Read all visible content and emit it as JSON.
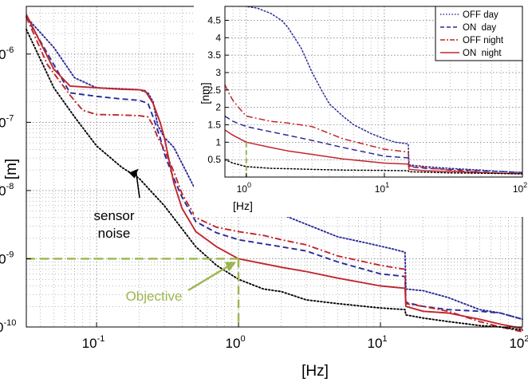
{
  "chart_data": [
    {
      "type": "line",
      "xscale": "log",
      "yscale": "log",
      "xlim": [
        0.032,
        100
      ],
      "ylim": [
        1e-10,
        5e-06
      ],
      "xlabel": "[Hz]",
      "ylabel": "[m]",
      "x_ticks": [
        {
          "value": 0.1,
          "base": "10",
          "exp": "-1"
        },
        {
          "value": 1,
          "base": "10",
          "exp": "0"
        },
        {
          "value": 10,
          "base": "10",
          "exp": "1"
        },
        {
          "value": 100,
          "base": "10",
          "exp": "2"
        }
      ],
      "y_ticks": [
        {
          "value": 1e-10,
          "base": "10",
          "exp": "-10"
        },
        {
          "value": 1e-09,
          "base": "10",
          "exp": "-9"
        },
        {
          "value": 1e-08,
          "base": "10",
          "exp": "-8"
        },
        {
          "value": 1e-07,
          "base": "10",
          "exp": "-7"
        },
        {
          "value": 1e-06,
          "base": "10",
          "exp": "-6"
        }
      ],
      "grid": true,
      "series": [
        {
          "key": "off_day",
          "color": "#2a2a9a",
          "style": "dotted",
          "x": [
            0.032,
            0.05,
            0.07,
            0.1,
            0.15,
            0.2,
            0.23,
            0.25,
            0.27,
            0.3,
            0.35,
            0.4,
            0.5,
            0.7,
            1,
            1.5,
            2,
            3,
            5,
            8,
            12,
            14.9,
            15.1,
            20,
            30,
            50,
            70,
            100
          ],
          "y": [
            3.5e-06,
            1.25e-06,
            4.5e-07,
            3.2e-07,
            3.1e-07,
            3e-07,
            2.7e-07,
            2e-07,
            9e-08,
            6e-08,
            4.3e-08,
            2.5e-08,
            1e-08,
            5.8e-09,
            5.2e-09,
            4.8e-09,
            4.5e-09,
            3.2e-09,
            2.1e-09,
            1.7e-09,
            1.4e-09,
            1.25e-09,
            3.6e-10,
            3.4e-10,
            2.7e-10,
            1.8e-10,
            1.6e-10,
            1.3e-10
          ]
        },
        {
          "key": "on_day",
          "color": "#2a2a9a",
          "style": "dashed",
          "x": [
            0.032,
            0.05,
            0.065,
            0.1,
            0.15,
            0.2,
            0.23,
            0.25,
            0.28,
            0.3,
            0.35,
            0.4,
            0.5,
            0.7,
            1,
            2,
            3,
            5,
            10,
            14.9,
            15.1,
            20,
            30,
            50,
            70,
            100
          ],
          "y": [
            3.5e-06,
            7e-07,
            2.7e-07,
            2.4e-07,
            2.2e-07,
            2.1e-07,
            1.9e-07,
            1.2e-07,
            6e-08,
            3.5e-08,
            1.5e-08,
            8e-09,
            3.5e-09,
            2.4e-09,
            1.9e-09,
            1.5e-09,
            1.3e-09,
            9e-10,
            6e-10,
            5.5e-10,
            2.3e-10,
            2e-10,
            1.8e-10,
            1.7e-10,
            1.6e-10,
            1.3e-10
          ]
        },
        {
          "key": "off_night",
          "color": "#c0262d",
          "style": "dashdot",
          "x": [
            0.032,
            0.045,
            0.065,
            0.08,
            0.1,
            0.15,
            0.2,
            0.23,
            0.25,
            0.27,
            0.3,
            0.35,
            0.4,
            0.5,
            0.7,
            1,
            1.5,
            2,
            3,
            5,
            10,
            14.9,
            15.1,
            20,
            30,
            50,
            70,
            100
          ],
          "y": [
            3.5e-06,
            7e-07,
            2.5e-07,
            1.5e-07,
            1.3e-07,
            1.28e-07,
            1.25e-07,
            1.2e-07,
            9e-08,
            6e-08,
            4e-08,
            1.9e-08,
            9e-09,
            4e-09,
            2.9e-09,
            2.5e-09,
            2.2e-09,
            1.9e-09,
            1.6e-09,
            1.1e-09,
            8e-10,
            7e-10,
            2.2e-10,
            2e-10,
            1.7e-10,
            1.2e-10,
            1e-10,
            8.5e-11
          ]
        },
        {
          "key": "on_night",
          "color": "#c0262d",
          "style": "solid",
          "x": [
            0.032,
            0.05,
            0.065,
            0.1,
            0.15,
            0.2,
            0.22,
            0.25,
            0.28,
            0.3,
            0.35,
            0.4,
            0.5,
            0.7,
            1,
            2,
            3,
            5,
            10,
            14.9,
            15.1,
            20,
            30,
            50,
            70,
            100
          ],
          "y": [
            3.8e-06,
            6e-07,
            3.4e-07,
            3.2e-07,
            3.05e-07,
            3e-07,
            2.9e-07,
            1.9e-07,
            1e-07,
            6e-08,
            1.3e-08,
            5.5e-09,
            2.5e-09,
            1.5e-09,
            1e-09,
            7.5e-10,
            6.5e-10,
            5.2e-10,
            4e-10,
            3.7e-10,
            2e-10,
            1.7e-10,
            1.6e-10,
            1.3e-10,
            1.1e-10,
            9.5e-11
          ]
        },
        {
          "key": "sensor_noise",
          "color": "#000000",
          "style": "dotted",
          "x": [
            0.032,
            0.05,
            0.07,
            0.1,
            0.15,
            0.2,
            0.3,
            0.5,
            0.7,
            1,
            1.5,
            2,
            3,
            5,
            10,
            14.9,
            15.1,
            20,
            30,
            50,
            70,
            100
          ],
          "y": [
            2.3e-06,
            3.2e-07,
            1.2e-07,
            4.5e-08,
            2.2e-08,
            1.5e-08,
            6e-09,
            1.5e-09,
            8e-10,
            5e-10,
            3.6e-10,
            3.3e-10,
            2.5e-10,
            2.2e-10,
            1.9e-10,
            1.8e-10,
            1.5e-10,
            1.35e-10,
            1.2e-10,
            1.05e-10,
            1e-10,
            9e-11
          ]
        }
      ],
      "objective": {
        "x": 1,
        "y": 1e-09,
        "color": "#9cb64f",
        "label": "Objective",
        "label_color": "#9cb64f"
      },
      "annotations": [
        {
          "key": "sensor_noise",
          "lines": [
            "sensor",
            "noise"
          ],
          "points_to": {
            "x": 0.2,
            "y": 2.2e-08
          }
        }
      ]
    },
    {
      "type": "line",
      "xscale": "log",
      "yscale": "linear",
      "xlim": [
        0.7,
        100
      ],
      "ylim": [
        0,
        4.9
      ],
      "xlabel": "[Hz]",
      "ylabel": "[nm]",
      "x_ticks": [
        {
          "value": 1,
          "base": "10",
          "exp": "0"
        },
        {
          "value": 10,
          "base": "10",
          "exp": "1"
        },
        {
          "value": 100,
          "base": "10",
          "exp": "2"
        }
      ],
      "y_ticks": [
        "0.5",
        "1",
        "1.5",
        "2",
        "2.5",
        "3",
        "3.5",
        "4",
        "4.5"
      ],
      "grid": true,
      "legend": {
        "position": "top-right",
        "entries": [
          {
            "key": "off_day",
            "label": "OFF day",
            "color": "#2a2a9a",
            "style": "dotted"
          },
          {
            "key": "on_day",
            "label": "ON  day",
            "color": "#2a2a9a",
            "style": "dashed"
          },
          {
            "key": "off_night",
            "label": "OFF night",
            "color": "#c0262d",
            "style": "dashdot"
          },
          {
            "key": "on_night",
            "label": "ON  night",
            "color": "#c0262d",
            "style": "solid"
          }
        ]
      },
      "series": [
        {
          "key": "off_day",
          "color": "#2a2a9a",
          "style": "dotted",
          "x": [
            0.7,
            1.0,
            1.2,
            1.5,
            1.8,
            2.0,
            2.5,
            3,
            3.5,
            4,
            5,
            6,
            8,
            10,
            12,
            14.9,
            15.1,
            20,
            30,
            50,
            70,
            100
          ],
          "y": [
            5.0,
            4.9,
            4.85,
            4.7,
            4.5,
            4.3,
            3.7,
            3.0,
            2.5,
            2.1,
            1.75,
            1.5,
            1.25,
            1.1,
            1.0,
            0.95,
            0.35,
            0.3,
            0.25,
            0.2,
            0.16,
            0.13
          ]
        },
        {
          "key": "on_day",
          "color": "#2a2a9a",
          "style": "dashed",
          "x": [
            0.7,
            0.8,
            1.0,
            1.5,
            2,
            3,
            5,
            10,
            14.9,
            15.1,
            20,
            30,
            50,
            70,
            100
          ],
          "y": [
            1.75,
            1.6,
            1.45,
            1.3,
            1.2,
            1.05,
            0.85,
            0.6,
            0.55,
            0.3,
            0.25,
            0.22,
            0.18,
            0.16,
            0.13
          ]
        },
        {
          "key": "off_night",
          "color": "#c0262d",
          "style": "dashdot",
          "x": [
            0.7,
            0.75,
            0.8,
            0.9,
            1.0,
            1.5,
            2,
            3,
            5,
            10,
            14.9,
            15.1,
            20,
            30,
            50,
            70,
            100
          ],
          "y": [
            2.65,
            2.4,
            2.2,
            1.95,
            1.75,
            1.6,
            1.55,
            1.45,
            1.1,
            0.8,
            0.72,
            0.32,
            0.27,
            0.2,
            0.14,
            0.11,
            0.09
          ]
        },
        {
          "key": "on_night",
          "color": "#c0262d",
          "style": "solid",
          "x": [
            0.7,
            0.8,
            1.0,
            1.5,
            2,
            3,
            5,
            10,
            14.9,
            15.1,
            20,
            30,
            50,
            70,
            100
          ],
          "y": [
            1.35,
            1.2,
            1.0,
            0.85,
            0.75,
            0.65,
            0.52,
            0.4,
            0.37,
            0.22,
            0.18,
            0.16,
            0.13,
            0.11,
            0.1
          ]
        },
        {
          "key": "sensor_noise",
          "color": "#000000",
          "style": "dotted",
          "x": [
            0.7,
            0.8,
            1.0,
            1.5,
            2,
            3,
            5,
            10,
            14.9,
            15.1,
            20,
            30,
            50,
            70,
            100
          ],
          "y": [
            0.5,
            0.4,
            0.3,
            0.25,
            0.24,
            0.22,
            0.2,
            0.19,
            0.18,
            0.15,
            0.14,
            0.12,
            0.11,
            0.1,
            0.09
          ]
        }
      ],
      "objective": {
        "x": 1,
        "y": 1,
        "color": "#9cb64f"
      }
    }
  ]
}
